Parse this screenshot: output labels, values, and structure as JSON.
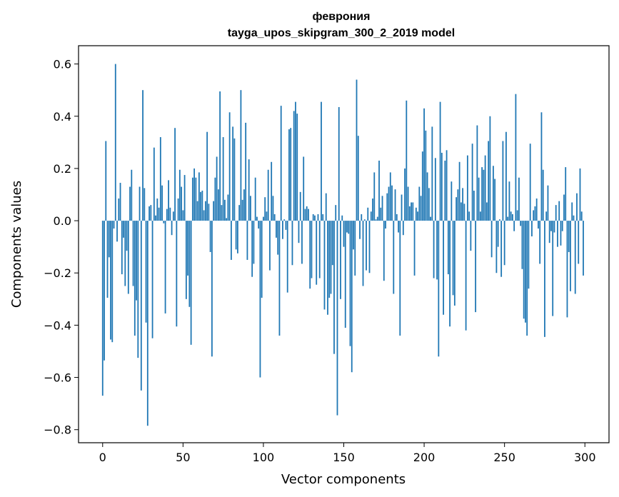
{
  "chart_data": {
    "type": "bar",
    "title": "феврония",
    "subtitle": "tayga_upos_skipgram_300_2_2019 model",
    "xlabel": "Vector components",
    "ylabel": "Components values",
    "xlim": [
      -15,
      315
    ],
    "ylim": [
      -0.85,
      0.67
    ],
    "xticks": [
      0,
      50,
      100,
      150,
      200,
      250,
      300
    ],
    "yticks": [
      -0.8,
      -0.6,
      -0.4,
      -0.2,
      0.0,
      0.2,
      0.4,
      0.6
    ],
    "ytick_labels": [
      "−0.8",
      "−0.6",
      "−0.4",
      "−0.2",
      "0.0",
      "0.2",
      "0.4",
      "0.6"
    ],
    "grid": false,
    "bar_color": "#1f77b4",
    "x": "indices 0..299",
    "values": [
      -0.67,
      -0.535,
      0.305,
      -0.295,
      -0.14,
      -0.455,
      -0.465,
      -0.03,
      0.6,
      -0.08,
      0.085,
      0.145,
      -0.205,
      -0.065,
      -0.25,
      -0.115,
      -0.28,
      0.13,
      0.195,
      -0.25,
      -0.44,
      -0.305,
      -0.525,
      0.13,
      -0.65,
      0.5,
      0.125,
      -0.39,
      -0.785,
      0.055,
      0.06,
      -0.45,
      0.28,
      0.02,
      0.085,
      0.05,
      0.32,
      0.135,
      -0.01,
      -0.355,
      0.045,
      0.155,
      0.05,
      -0.055,
      0.035,
      0.355,
      -0.405,
      0.085,
      0.195,
      0.13,
      0.04,
      0.175,
      -0.3,
      -0.21,
      -0.33,
      -0.475,
      0.165,
      0.2,
      0.165,
      0.075,
      0.185,
      0.11,
      0.115,
      0.04,
      0.075,
      0.34,
      0.065,
      -0.12,
      -0.52,
      0.075,
      0.165,
      0.245,
      0.12,
      0.495,
      0.06,
      0.32,
      0.08,
      0.01,
      0.1,
      0.415,
      -0.15,
      0.36,
      0.315,
      -0.11,
      -0.125,
      0.06,
      0.5,
      0.08,
      0.12,
      0.375,
      -0.15,
      0.235,
      0.095,
      -0.215,
      -0.165,
      0.165,
      0.015,
      -0.03,
      -0.6,
      -0.295,
      0.015,
      0.09,
      0.035,
      0.195,
      -0.19,
      0.225,
      0.095,
      0.025,
      -0.065,
      -0.13,
      -0.44,
      0.44,
      -0.07,
      0.005,
      -0.035,
      -0.275,
      0.35,
      0.355,
      -0.17,
      0.42,
      0.455,
      0.41,
      -0.085,
      0.11,
      -0.165,
      0.245,
      0.045,
      0.055,
      0.045,
      -0.26,
      -0.22,
      0.025,
      0.02,
      -0.245,
      0.025,
      -0.22,
      0.455,
      0.025,
      -0.34,
      0.105,
      -0.36,
      -0.295,
      -0.28,
      -0.17,
      -0.51,
      0.06,
      -0.745,
      0.435,
      -0.3,
      0.02,
      -0.1,
      -0.41,
      -0.045,
      -0.05,
      -0.48,
      -0.58,
      -0.11,
      -0.21,
      0.54,
      0.325,
      -0.07,
      0.025,
      -0.25,
      0.005,
      -0.19,
      0.05,
      -0.2,
      0.035,
      0.085,
      0.185,
      0.005,
      0.015,
      0.23,
      0.05,
      0.095,
      -0.23,
      -0.03,
      0.105,
      0.13,
      0.185,
      0.135,
      -0.28,
      0.12,
      0.025,
      -0.045,
      -0.44,
      0.1,
      -0.055,
      0.2,
      0.46,
      0.13,
      0.055,
      0.07,
      0.07,
      -0.21,
      0.05,
      0.035,
      0.13,
      0.095,
      0.265,
      0.43,
      0.345,
      0.185,
      0.125,
      0.015,
      0.36,
      -0.22,
      0.24,
      -0.225,
      -0.52,
      0.455,
      0.26,
      -0.36,
      0.23,
      0.27,
      -0.205,
      -0.405,
      0.15,
      -0.285,
      -0.325,
      0.09,
      0.12,
      0.225,
      0.07,
      0.125,
      0.065,
      -0.42,
      0.25,
      0.035,
      -0.115,
      0.295,
      0.115,
      -0.35,
      0.365,
      0.165,
      0.035,
      0.205,
      0.195,
      0.25,
      0.07,
      0.305,
      0.4,
      -0.14,
      0.21,
      0.16,
      -0.2,
      -0.1,
      0.005,
      -0.215,
      0.305,
      -0.17,
      0.34,
      0.015,
      0.15,
      0.035,
      0.025,
      -0.04,
      0.485,
      0.04,
      0.165,
      -0.02,
      -0.185,
      -0.375,
      -0.39,
      -0.44,
      -0.26,
      0.295,
      -0.06,
      0.04,
      0.055,
      0.085,
      -0.03,
      -0.165,
      0.415,
      0.195,
      -0.445,
      0.035,
      0.135,
      -0.085,
      -0.04,
      -0.365,
      -0.045,
      0.06,
      -0.1,
      0.075,
      -0.095,
      -0.04,
      0.1,
      0.205,
      -0.37,
      -0.12,
      -0.27,
      0.07,
      0.02,
      -0.28,
      0.105,
      -0.165,
      0.2,
      0.035,
      -0.21
    ]
  }
}
